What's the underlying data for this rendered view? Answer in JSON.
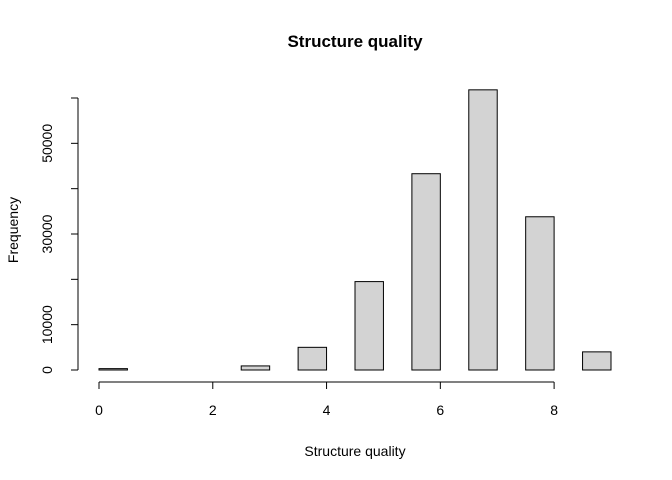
{
  "chart_data": {
    "type": "bar",
    "title": "Structure quality",
    "xlabel": "Structure quality",
    "ylabel": "Frequency",
    "bar_fill": "#d3d3d3",
    "bar_stroke": "#000000",
    "xlim": [
      0,
      9
    ],
    "ylim": [
      0,
      60000
    ],
    "x_ticks": [
      0,
      2,
      4,
      6,
      8
    ],
    "y_ticks": [
      0,
      10000,
      30000,
      50000
    ],
    "bins": [
      {
        "x0": 0.0,
        "x1": 0.5,
        "value": 300
      },
      {
        "x0": 0.5,
        "x1": 1.0,
        "value": 0
      },
      {
        "x0": 1.0,
        "x1": 1.5,
        "value": 0
      },
      {
        "x0": 1.5,
        "x1": 2.0,
        "value": 0
      },
      {
        "x0": 2.0,
        "x1": 2.5,
        "value": 0
      },
      {
        "x0": 2.5,
        "x1": 3.0,
        "value": 900
      },
      {
        "x0": 3.0,
        "x1": 3.5,
        "value": 0
      },
      {
        "x0": 3.5,
        "x1": 4.0,
        "value": 5000
      },
      {
        "x0": 4.0,
        "x1": 4.5,
        "value": 0
      },
      {
        "x0": 4.5,
        "x1": 5.0,
        "value": 19500
      },
      {
        "x0": 5.0,
        "x1": 5.5,
        "value": 0
      },
      {
        "x0": 5.5,
        "x1": 6.0,
        "value": 43300
      },
      {
        "x0": 6.0,
        "x1": 6.5,
        "value": 0
      },
      {
        "x0": 6.5,
        "x1": 7.0,
        "value": 61800
      },
      {
        "x0": 7.0,
        "x1": 7.5,
        "value": 0
      },
      {
        "x0": 7.5,
        "x1": 8.0,
        "value": 33800
      },
      {
        "x0": 8.0,
        "x1": 8.5,
        "value": 0
      },
      {
        "x0": 8.5,
        "x1": 9.0,
        "value": 4000
      }
    ]
  }
}
